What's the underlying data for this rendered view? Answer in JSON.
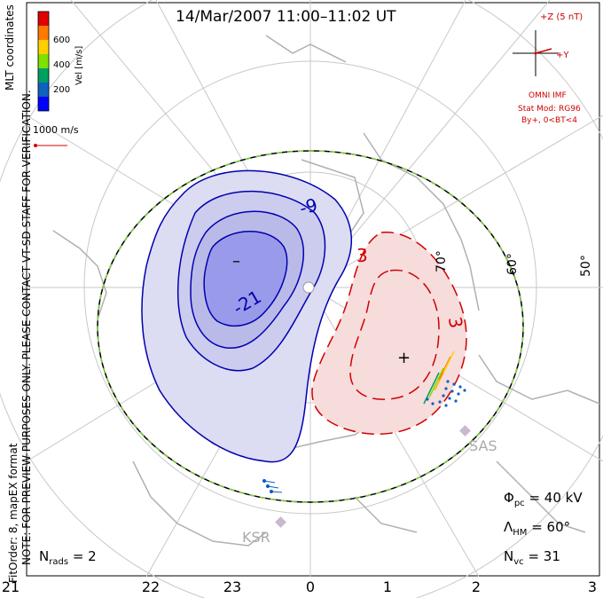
{
  "title": "14/Mar/2007 11:00–11:02 UT",
  "side_note": {
    "line1": "NOTE: FOR PREVIEW PURPOSES ONLY. PLEASE CONTACT VT-SD STAFF FOR VERIFICATION.",
    "line2": "FitOrder: 8, mapEX format"
  },
  "coords_label": "MLT coordinates",
  "colorbar": {
    "label": "Vel [m/s]",
    "ticks": [
      "600",
      "400",
      "200"
    ],
    "colors": [
      "#e00000",
      "#ff7a00",
      "#ffd000",
      "#80e000",
      "#00a060",
      "#1060c0",
      "#0000ff"
    ]
  },
  "scale_vector": {
    "label": "1000 m/s",
    "color": "#d00000"
  },
  "imf": {
    "z_label": "+Z (5 nT)",
    "y_label": "+Y",
    "source": "OMNI IMF",
    "stat_mod": "Stat Mod: RG96",
    "condition": "By+, 0<BT<4",
    "color": "#d00000"
  },
  "latitude_labels": [
    "70°",
    "60°",
    "50°"
  ],
  "contour_labels": {
    "negative": [
      "-9",
      "-21"
    ],
    "positive": [
      "3",
      "3"
    ],
    "min_marker": "–",
    "max_marker": "+"
  },
  "radar_sites": [
    "SAS",
    "KSR"
  ],
  "stats": {
    "phi_pc": {
      "symbol": "Φ",
      "sub": "pc",
      "value": "= 40 kV"
    },
    "lambda_hm": {
      "symbol": "Λ",
      "sub": "HM",
      "value": "= 60°"
    },
    "n_vc": {
      "symbol": "N",
      "sub": "vc",
      "value": "= 31"
    },
    "n_rads": {
      "symbol": "N",
      "sub": "rads",
      "value": "= 2"
    }
  },
  "mlt_axis": [
    "21",
    "22",
    "23",
    "0",
    "1",
    "2",
    "3"
  ],
  "colors": {
    "negative_fill": "#dcdcf2",
    "negative_line": "#0000b0",
    "positive_fill": "#f7dcdc",
    "positive_line": "#d00000",
    "grid": "#c8c8c8",
    "coast": "#b0b0b0",
    "boundary_dash": "#80d040"
  }
}
